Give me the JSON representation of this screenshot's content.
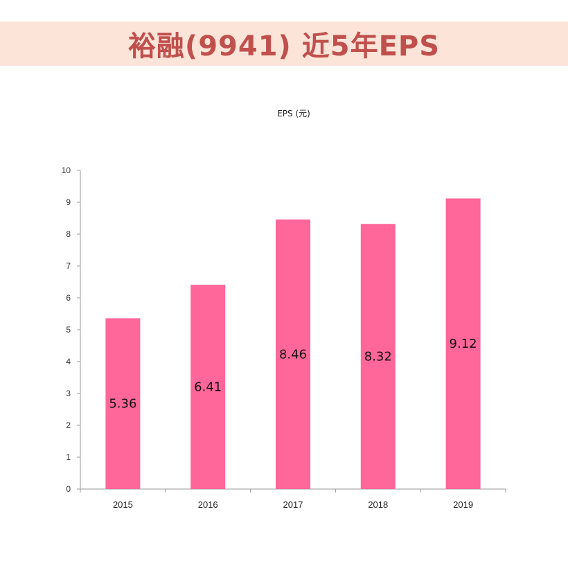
{
  "banner": {
    "title": "裕融(9941) 近5年EPS",
    "background": "#fde4d9",
    "title_color": "#c0504d"
  },
  "chart_data": {
    "type": "bar",
    "title": "EPS (元)",
    "categories": [
      "2015",
      "2016",
      "2017",
      "2018",
      "2019"
    ],
    "values": [
      5.36,
      6.41,
      8.46,
      8.32,
      9.12
    ],
    "value_labels": [
      "5.36",
      "6.41",
      "8.46",
      "8.32",
      "9.12"
    ],
    "ylim": [
      0,
      10
    ],
    "yticks": [
      "0",
      "1",
      "2",
      "3",
      "4",
      "5",
      "6",
      "7",
      "8",
      "9",
      "10"
    ],
    "grid": false,
    "legend": "none",
    "bar_color": "#ff6699",
    "axis_color": "#9a9a9a"
  }
}
